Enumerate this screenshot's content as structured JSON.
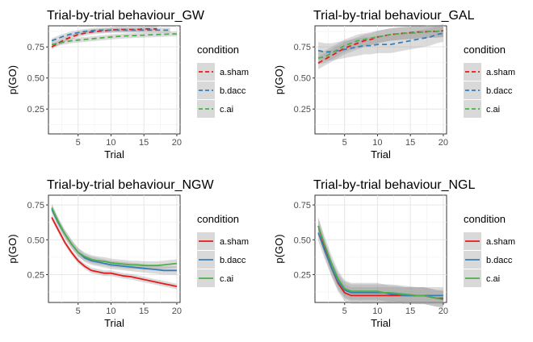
{
  "chart_data": [
    {
      "type": "line",
      "title": "Trial-by-trial behaviour_GW",
      "xlabel": "Trial",
      "ylabel": "p(GO)",
      "xlim": [
        0.5,
        20.5
      ],
      "ylim": [
        0.05,
        0.92
      ],
      "xticks": [
        5,
        10,
        15,
        20
      ],
      "yticks": [
        0.25,
        0.5,
        0.75
      ],
      "grid": true,
      "line_style": "dashed",
      "legend": {
        "title": "condition",
        "position": "right",
        "entries": [
          "a.sham",
          "b.dacc",
          "c.ai"
        ]
      },
      "series": [
        {
          "name": "a.sham",
          "color": "#E41A1C",
          "x": [
            1,
            2,
            3,
            4,
            5,
            6,
            7,
            8,
            9,
            10,
            11,
            12,
            13,
            14,
            15,
            16,
            17
          ],
          "y": [
            0.75,
            0.78,
            0.81,
            0.83,
            0.85,
            0.86,
            0.87,
            0.875,
            0.88,
            0.885,
            0.89,
            0.89,
            0.89,
            0.89,
            0.895,
            0.895,
            0.895
          ],
          "band": 0.02
        },
        {
          "name": "b.dacc",
          "color": "#377EB8",
          "x": [
            1,
            2,
            3,
            4,
            5,
            6,
            7,
            8,
            9,
            10,
            11,
            12,
            13,
            14,
            15,
            16,
            17,
            18,
            19
          ],
          "y": [
            0.8,
            0.82,
            0.84,
            0.855,
            0.865,
            0.875,
            0.88,
            0.885,
            0.885,
            0.885,
            0.885,
            0.885,
            0.885,
            0.885,
            0.885,
            0.885,
            0.885,
            0.885,
            0.885
          ],
          "band": 0.02
        },
        {
          "name": "c.ai",
          "color": "#4DAF4A",
          "x": [
            1,
            2,
            3,
            4,
            5,
            6,
            7,
            8,
            9,
            10,
            11,
            12,
            13,
            14,
            15,
            16,
            17,
            18,
            19,
            20
          ],
          "y": [
            0.77,
            0.78,
            0.79,
            0.8,
            0.805,
            0.81,
            0.815,
            0.82,
            0.825,
            0.83,
            0.835,
            0.838,
            0.84,
            0.843,
            0.845,
            0.848,
            0.85,
            0.852,
            0.854,
            0.855
          ],
          "band": 0.02
        }
      ]
    },
    {
      "type": "line",
      "title": "Trial-by-trial behaviour_GAL",
      "xlabel": "Trial",
      "ylabel": "p(GO)",
      "xlim": [
        0.5,
        20.5
      ],
      "ylim": [
        0.05,
        0.92
      ],
      "xticks": [
        5,
        10,
        15,
        20
      ],
      "yticks": [
        0.25,
        0.5,
        0.75
      ],
      "grid": true,
      "line_style": "dashed",
      "legend": {
        "title": "condition",
        "position": "right",
        "entries": [
          "a.sham",
          "b.dacc",
          "c.ai"
        ]
      },
      "series": [
        {
          "name": "a.sham",
          "color": "#E41A1C",
          "x": [
            1,
            2,
            3,
            4,
            5,
            6,
            7,
            8,
            9,
            10,
            11,
            12,
            13,
            14,
            15,
            16,
            17,
            18,
            19,
            20
          ],
          "y": [
            0.62,
            0.65,
            0.68,
            0.71,
            0.74,
            0.76,
            0.78,
            0.8,
            0.81,
            0.83,
            0.84,
            0.85,
            0.855,
            0.86,
            0.865,
            0.87,
            0.87,
            0.875,
            0.875,
            0.88
          ],
          "band": 0.05
        },
        {
          "name": "b.dacc",
          "color": "#377EB8",
          "x": [
            1,
            2,
            3,
            4,
            5,
            6,
            7,
            8,
            9,
            10,
            11,
            12,
            13,
            14,
            15,
            16,
            17,
            18,
            19,
            20
          ],
          "y": [
            0.72,
            0.71,
            0.71,
            0.72,
            0.73,
            0.74,
            0.75,
            0.76,
            0.76,
            0.77,
            0.77,
            0.77,
            0.78,
            0.79,
            0.8,
            0.81,
            0.82,
            0.83,
            0.85,
            0.86
          ],
          "band": 0.07
        },
        {
          "name": "c.ai",
          "color": "#4DAF4A",
          "x": [
            1,
            2,
            3,
            4,
            5,
            6,
            7,
            8,
            9,
            10,
            11,
            12,
            13,
            14,
            15,
            16,
            17,
            18,
            19,
            20
          ],
          "y": [
            0.66,
            0.67,
            0.7,
            0.73,
            0.76,
            0.78,
            0.8,
            0.81,
            0.82,
            0.83,
            0.84,
            0.85,
            0.855,
            0.86,
            0.86,
            0.865,
            0.87,
            0.875,
            0.875,
            0.88
          ],
          "band": 0.05
        }
      ]
    },
    {
      "type": "line",
      "title": "Trial-by-trial behaviour_NGW",
      "xlabel": "Trial",
      "ylabel": "p(GO)",
      "xlim": [
        0.5,
        20.5
      ],
      "ylim": [
        0.05,
        0.82
      ],
      "xticks": [
        5,
        10,
        15,
        20
      ],
      "yticks": [
        0.25,
        0.5,
        0.75
      ],
      "grid": true,
      "line_style": "solid",
      "legend": {
        "title": "condition",
        "position": "right",
        "entries": [
          "a.sham",
          "b.dacc",
          "c.ai"
        ]
      },
      "series": [
        {
          "name": "a.sham",
          "color": "#E41A1C",
          "x": [
            1,
            2,
            3,
            4,
            5,
            6,
            7,
            8,
            9,
            10,
            11,
            12,
            13,
            14,
            15,
            16,
            17,
            18,
            19,
            20
          ],
          "y": [
            0.66,
            0.57,
            0.48,
            0.41,
            0.35,
            0.31,
            0.28,
            0.27,
            0.26,
            0.26,
            0.25,
            0.24,
            0.235,
            0.225,
            0.215,
            0.205,
            0.195,
            0.185,
            0.175,
            0.165
          ],
          "band": 0.02
        },
        {
          "name": "b.dacc",
          "color": "#377EB8",
          "x": [
            1,
            2,
            3,
            4,
            5,
            6,
            7,
            8,
            9,
            10,
            11,
            12,
            13,
            14,
            15,
            16,
            17,
            18,
            19,
            20
          ],
          "y": [
            0.72,
            0.62,
            0.54,
            0.47,
            0.41,
            0.37,
            0.35,
            0.34,
            0.33,
            0.32,
            0.315,
            0.31,
            0.305,
            0.3,
            0.295,
            0.29,
            0.285,
            0.28,
            0.28,
            0.28
          ],
          "band": 0.03
        },
        {
          "name": "c.ai",
          "color": "#4DAF4A",
          "x": [
            1,
            2,
            3,
            4,
            5,
            6,
            7,
            8,
            9,
            10,
            11,
            12,
            13,
            14,
            15,
            16,
            17,
            18,
            19,
            20
          ],
          "y": [
            0.73,
            0.63,
            0.54,
            0.47,
            0.41,
            0.38,
            0.36,
            0.35,
            0.345,
            0.335,
            0.33,
            0.325,
            0.32,
            0.32,
            0.315,
            0.315,
            0.315,
            0.32,
            0.325,
            0.33
          ],
          "band": 0.03
        }
      ]
    },
    {
      "type": "line",
      "title": "Trial-by-trial behaviour_NGL",
      "xlabel": "Trial",
      "ylabel": "p(GO)",
      "xlim": [
        0.5,
        20.5
      ],
      "ylim": [
        0.05,
        0.82
      ],
      "xticks": [
        5,
        10,
        15,
        20
      ],
      "yticks": [
        0.25,
        0.5,
        0.75
      ],
      "grid": true,
      "line_style": "solid",
      "legend": {
        "title": "condition",
        "position": "right",
        "entries": [
          "a.sham",
          "b.dacc",
          "c.ai"
        ]
      },
      "series": [
        {
          "name": "a.sham",
          "color": "#E41A1C",
          "x": [
            1,
            2,
            3,
            4,
            5,
            6,
            7,
            8,
            9,
            10,
            11,
            12,
            13,
            14,
            15,
            16,
            17,
            18,
            19,
            20
          ],
          "y": [
            0.6,
            0.44,
            0.3,
            0.19,
            0.12,
            0.1,
            0.1,
            0.1,
            0.1,
            0.1,
            0.1,
            0.1,
            0.1,
            0.1,
            0.1,
            0.1,
            0.1,
            0.09,
            0.08,
            0.08
          ],
          "band": 0.06
        },
        {
          "name": "b.dacc",
          "color": "#377EB8",
          "x": [
            1,
            2,
            3,
            4,
            5,
            6,
            7,
            8,
            9,
            10,
            11,
            12,
            13,
            14,
            15,
            16,
            17,
            18,
            19,
            20
          ],
          "y": [
            0.55,
            0.42,
            0.3,
            0.2,
            0.14,
            0.12,
            0.12,
            0.12,
            0.12,
            0.12,
            0.12,
            0.11,
            0.11,
            0.1,
            0.1,
            0.1,
            0.1,
            0.1,
            0.1,
            0.1
          ],
          "band": 0.06
        },
        {
          "name": "c.ai",
          "color": "#4DAF4A",
          "x": [
            1,
            2,
            3,
            4,
            5,
            6,
            7,
            8,
            9,
            10,
            11,
            12,
            13,
            14,
            15,
            16,
            17,
            18,
            19,
            20
          ],
          "y": [
            0.6,
            0.46,
            0.33,
            0.22,
            0.15,
            0.13,
            0.13,
            0.13,
            0.13,
            0.13,
            0.12,
            0.12,
            0.115,
            0.11,
            0.105,
            0.1,
            0.1,
            0.09,
            0.08,
            0.07
          ],
          "band": 0.06
        }
      ]
    }
  ]
}
